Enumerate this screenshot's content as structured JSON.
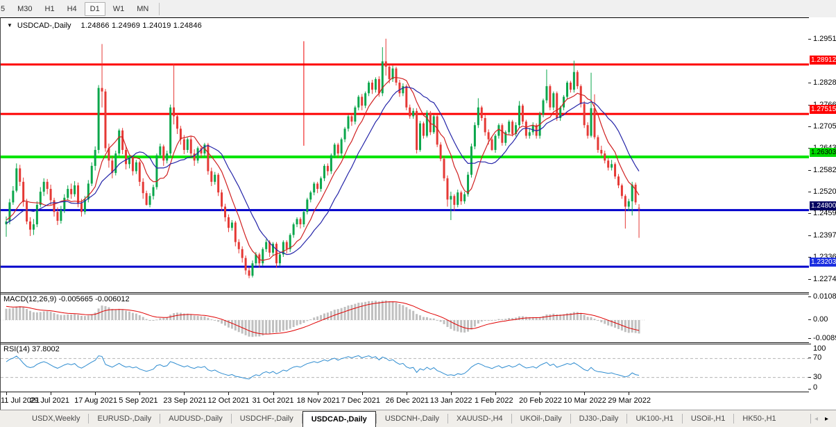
{
  "toolbar": {
    "timeframes": [
      {
        "label": "5",
        "active": false,
        "partial": true
      },
      {
        "label": "M30",
        "active": false
      },
      {
        "label": "H1",
        "active": false
      },
      {
        "label": "H4",
        "active": false
      },
      {
        "label": "D1",
        "active": true
      },
      {
        "label": "W1",
        "active": false
      },
      {
        "label": "MN",
        "active": false
      }
    ]
  },
  "chart_header": {
    "symbol_label": "USDCAD-,Daily",
    "ohlc_text": "1.24866 1.24969 1.24019 1.24846",
    "dropdown_icon": "triangle-down"
  },
  "price_axis": {
    "ticks": [
      {
        "label": "1.29510",
        "value": 1.2951
      },
      {
        "label": "1.28280",
        "value": 1.2828
      },
      {
        "label": "1.27665",
        "value": 1.27665
      },
      {
        "label": "1.27050",
        "value": 1.2705
      },
      {
        "label": "1.26435",
        "value": 1.26435
      },
      {
        "label": "1.25820",
        "value": 1.2582
      },
      {
        "label": "1.25205",
        "value": 1.25205
      },
      {
        "label": "1.24590",
        "value": 1.2459
      },
      {
        "label": "1.23975",
        "value": 1.23975
      },
      {
        "label": "1.23360",
        "value": 1.2336
      },
      {
        "label": "1.22745",
        "value": 1.22745
      }
    ]
  },
  "hlines": [
    {
      "price": 1.28912,
      "label": "1.28912",
      "line_color": "#fe0000",
      "line_width": 3,
      "label_bg": "#fe0000",
      "label_fg": "#ffffff"
    },
    {
      "price": 1.27515,
      "label": "1.27515",
      "line_color": "#fe0000",
      "line_width": 3,
      "label_bg": "#fe0000",
      "label_fg": "#ffffff"
    },
    {
      "price": 1.26303,
      "label": "1.26303",
      "line_color": "#00e400",
      "line_width": 4,
      "label_bg": "#00d800",
      "label_fg": "#000000"
    },
    {
      "price": 1.248,
      "label": "1.24800",
      "line_color": "#0000cc",
      "line_width": 3,
      "label_bg": "#000060",
      "label_fg": "#ffffff"
    },
    {
      "price": 1.23203,
      "label": "1.23203",
      "line_color": "#0000cc",
      "line_width": 3,
      "label_bg": "#1b2fe0",
      "label_fg": "#ffffff"
    }
  ],
  "indicators": {
    "macd": {
      "label": "MACD(12,26,9)",
      "values_text": "-0.005665 -0.006012",
      "axis_ticks": [
        {
          "label": "0.010869",
          "value": 0.010869
        },
        {
          "label": "0.00",
          "value": 0.0
        },
        {
          "label": "-0.008974",
          "value": -0.008974
        }
      ],
      "hist_color": "#c0c0c0",
      "signal_color": "#e00000"
    },
    "rsi": {
      "label": "RSI(14)",
      "value_text": "37.8002",
      "axis_ticks": [
        {
          "label": "100",
          "value": 100
        },
        {
          "label": "70",
          "value": 70
        },
        {
          "label": "30",
          "value": 30
        },
        {
          "label": "0",
          "value": 0
        }
      ],
      "levels": [
        70,
        30
      ],
      "line_color": "#2e8cd0",
      "level_color": "#b4b4b4"
    }
  },
  "time_axis": {
    "tick_interval_bars": 13,
    "dates": [
      "11 Jul 2021",
      "29 Jul 2021",
      "17 Aug 2021",
      "5 Sep 2021",
      "23 Sep 2021",
      "12 Oct 2021",
      "31 Oct 2021",
      "18 Nov 2021",
      "7 Dec 2021",
      "26 Dec 2021",
      "13 Jan 2022",
      "1 Feb 2022",
      "20 Feb 2022",
      "10 Mar 2022",
      "29 Mar 2022"
    ]
  },
  "tabs": {
    "items": [
      "USDX,Weekly",
      "EURUSD-,Daily",
      "AUDUSD-,Daily",
      "USDCHF-,Daily",
      "USDCAD-,Daily",
      "USDCNH-,Daily",
      "XAUUSD-,H4",
      "UKOil-,Daily",
      "DJ30-,Daily",
      "UK100-,H1",
      "USOil-,H1",
      "HK50-,H1"
    ],
    "active": "USDCAD-,Daily",
    "scroll_left_enabled": false,
    "scroll_right_enabled": true
  },
  "chart_data": {
    "type": "candlestick",
    "symbol": "USDCAD",
    "timeframe": "Daily",
    "title": "USDCAD-,Daily",
    "ylim": [
      1.2238,
      1.2973
    ],
    "grid": false,
    "up_color": "#0aa64b",
    "down_color": "#e53935",
    "ma_fast_color": "#d02020",
    "ma_slow_color": "#2424a8",
    "ma_fast_period": 8,
    "ma_slow_period": 16,
    "annotations": [
      {
        "type": "vline-segment",
        "bar": 87,
        "price_from": 1.2957,
        "price_to": 1.2662,
        "color": "#ee0000"
      }
    ],
    "indicator_warmup_closes": [
      1.205,
      1.208,
      1.2065,
      1.211,
      1.215,
      1.213,
      1.218,
      1.221,
      1.219,
      1.224,
      1.228,
      1.226,
      1.231,
      1.234,
      1.232,
      1.236,
      1.239,
      1.237,
      1.24,
      1.243,
      1.241,
      1.244,
      1.246,
      1.243,
      1.239,
      1.242,
      1.245,
      1.247,
      1.244,
      1.246,
      1.248,
      1.245,
      1.243,
      1.246,
      1.2445
    ],
    "candles": [
      [
        1.244,
        1.2462,
        1.2405,
        1.2448
      ],
      [
        1.2448,
        1.2512,
        1.244,
        1.2502
      ],
      [
        1.2502,
        1.2548,
        1.2495,
        1.2535
      ],
      [
        1.2535,
        1.2612,
        1.253,
        1.2598
      ],
      [
        1.2598,
        1.2608,
        1.2548,
        1.256
      ],
      [
        1.256,
        1.2572,
        1.249,
        1.2503
      ],
      [
        1.2503,
        1.2512,
        1.244,
        1.2448
      ],
      [
        1.2448,
        1.246,
        1.2407,
        1.2425
      ],
      [
        1.2425,
        1.2455,
        1.241,
        1.244
      ],
      [
        1.244,
        1.2505,
        1.2432,
        1.2495
      ],
      [
        1.2495,
        1.2545,
        1.2488,
        1.2532
      ],
      [
        1.2532,
        1.257,
        1.252,
        1.256
      ],
      [
        1.256,
        1.2568,
        1.2525,
        1.254
      ],
      [
        1.254,
        1.2552,
        1.2495,
        1.2508
      ],
      [
        1.2508,
        1.2515,
        1.2462,
        1.2475
      ],
      [
        1.2475,
        1.2488,
        1.2438,
        1.245
      ],
      [
        1.245,
        1.2492,
        1.2442,
        1.248
      ],
      [
        1.248,
        1.2525,
        1.2472,
        1.2515
      ],
      [
        1.2515,
        1.255,
        1.2508,
        1.254
      ],
      [
        1.254,
        1.2555,
        1.2512,
        1.2525
      ],
      [
        1.2525,
        1.2562,
        1.2518,
        1.255
      ],
      [
        1.255,
        1.2558,
        1.2488,
        1.25
      ],
      [
        1.25,
        1.2512,
        1.2462,
        1.2475
      ],
      [
        1.2475,
        1.252,
        1.2468,
        1.251
      ],
      [
        1.251,
        1.2565,
        1.2502,
        1.2555
      ],
      [
        1.2555,
        1.2615,
        1.2548,
        1.2605
      ],
      [
        1.2605,
        1.266,
        1.2592,
        1.265
      ],
      [
        1.265,
        1.2833,
        1.264,
        1.2825
      ],
      [
        1.2825,
        1.2949,
        1.277,
        1.2815
      ],
      [
        1.2815,
        1.2822,
        1.2645,
        1.2655
      ],
      [
        1.2655,
        1.2668,
        1.26,
        1.262
      ],
      [
        1.262,
        1.2632,
        1.257,
        1.2585
      ],
      [
        1.2585,
        1.2648,
        1.2578,
        1.264
      ],
      [
        1.264,
        1.271,
        1.2632,
        1.2705
      ],
      [
        1.2705,
        1.2712,
        1.2638,
        1.265
      ],
      [
        1.265,
        1.2662,
        1.2595,
        1.261
      ],
      [
        1.261,
        1.2635,
        1.2598,
        1.2628
      ],
      [
        1.2628,
        1.2635,
        1.2578,
        1.259
      ],
      [
        1.259,
        1.2622,
        1.2582,
        1.2615
      ],
      [
        1.2615,
        1.262,
        1.2548,
        1.256
      ],
      [
        1.256,
        1.257,
        1.2512,
        1.2528
      ],
      [
        1.2528,
        1.2535,
        1.2493,
        1.2495
      ],
      [
        1.2495,
        1.2528,
        1.2488,
        1.252
      ],
      [
        1.252,
        1.2552,
        1.251,
        1.2545
      ],
      [
        1.2545,
        1.264,
        1.2538,
        1.2635
      ],
      [
        1.2635,
        1.2668,
        1.2628,
        1.266
      ],
      [
        1.266,
        1.2665,
        1.2605,
        1.262
      ],
      [
        1.262,
        1.2648,
        1.2612,
        1.264
      ],
      [
        1.264,
        1.2778,
        1.2632,
        1.277
      ],
      [
        1.277,
        1.2893,
        1.2722,
        1.2745
      ],
      [
        1.2745,
        1.2752,
        1.2695,
        1.271
      ],
      [
        1.271,
        1.2718,
        1.2665,
        1.268
      ],
      [
        1.268,
        1.2692,
        1.2638,
        1.265
      ],
      [
        1.265,
        1.2685,
        1.2642,
        1.268
      ],
      [
        1.268,
        1.2688,
        1.2628,
        1.264
      ],
      [
        1.264,
        1.2652,
        1.2605,
        1.262
      ],
      [
        1.262,
        1.266,
        1.2612,
        1.2655
      ],
      [
        1.2655,
        1.2662,
        1.2628,
        1.264
      ],
      [
        1.264,
        1.267,
        1.2632,
        1.2665
      ],
      [
        1.2665,
        1.267,
        1.258,
        1.259
      ],
      [
        1.259,
        1.26,
        1.2548,
        1.256
      ],
      [
        1.256,
        1.2588,
        1.2552,
        1.258
      ],
      [
        1.258,
        1.2585,
        1.252,
        1.253
      ],
      [
        1.253,
        1.2538,
        1.2478,
        1.249
      ],
      [
        1.249,
        1.2498,
        1.2448,
        1.246
      ],
      [
        1.246,
        1.2468,
        1.2418,
        1.243
      ],
      [
        1.243,
        1.2452,
        1.2422,
        1.2445
      ],
      [
        1.2445,
        1.245,
        1.2378,
        1.239
      ],
      [
        1.239,
        1.2398,
        1.2358,
        1.237
      ],
      [
        1.237,
        1.2378,
        1.2332,
        1.2345
      ],
      [
        1.2345,
        1.2352,
        1.2298,
        1.231
      ],
      [
        1.231,
        1.2318,
        1.2288,
        1.2295
      ],
      [
        1.2295,
        1.2338,
        1.229,
        1.233
      ],
      [
        1.233,
        1.2362,
        1.2322,
        1.2355
      ],
      [
        1.2355,
        1.236,
        1.2318,
        1.233
      ],
      [
        1.233,
        1.2375,
        1.2322,
        1.237
      ],
      [
        1.237,
        1.2398,
        1.2362,
        1.239
      ],
      [
        1.239,
        1.2395,
        1.2348,
        1.236
      ],
      [
        1.236,
        1.239,
        1.2352,
        1.2385
      ],
      [
        1.2385,
        1.239,
        1.2318,
        1.233
      ],
      [
        1.233,
        1.236,
        1.2322,
        1.2355
      ],
      [
        1.2355,
        1.2395,
        1.2348,
        1.239
      ],
      [
        1.239,
        1.2395,
        1.2358,
        1.237
      ],
      [
        1.237,
        1.2415,
        1.2362,
        1.241
      ],
      [
        1.241,
        1.2445,
        1.2402,
        1.244
      ],
      [
        1.244,
        1.246,
        1.2432,
        1.2455
      ],
      [
        1.2455,
        1.246,
        1.2428,
        1.244
      ],
      [
        1.244,
        1.248,
        1.2432,
        1.2475
      ],
      [
        1.2475,
        1.2515,
        1.2468,
        1.251
      ],
      [
        1.251,
        1.2535,
        1.2502,
        1.253
      ],
      [
        1.253,
        1.256,
        1.2522,
        1.2555
      ],
      [
        1.2555,
        1.256,
        1.2528,
        1.254
      ],
      [
        1.254,
        1.2575,
        1.2532,
        1.257
      ],
      [
        1.257,
        1.261,
        1.2562,
        1.2605
      ],
      [
        1.2605,
        1.2612,
        1.2578,
        1.259
      ],
      [
        1.259,
        1.264,
        1.2582,
        1.2635
      ],
      [
        1.2635,
        1.267,
        1.2628,
        1.2665
      ],
      [
        1.2665,
        1.267,
        1.2628,
        1.264
      ],
      [
        1.264,
        1.2685,
        1.2632,
        1.268
      ],
      [
        1.268,
        1.2715,
        1.2672,
        1.271
      ],
      [
        1.271,
        1.275,
        1.2702,
        1.2745
      ],
      [
        1.2745,
        1.2752,
        1.2718,
        1.273
      ],
      [
        1.273,
        1.2775,
        1.2722,
        1.277
      ],
      [
        1.277,
        1.2805,
        1.2762,
        1.28
      ],
      [
        1.28,
        1.2808,
        1.2762,
        1.2775
      ],
      [
        1.2775,
        1.2815,
        1.2768,
        1.281
      ],
      [
        1.281,
        1.2845,
        1.2802,
        1.284
      ],
      [
        1.284,
        1.2848,
        1.2808,
        1.282
      ],
      [
        1.282,
        1.2855,
        1.2812,
        1.285
      ],
      [
        1.285,
        1.2858,
        1.28,
        1.281
      ],
      [
        1.281,
        1.294,
        1.2802,
        1.29
      ],
      [
        1.29,
        1.2964,
        1.286,
        1.2885
      ],
      [
        1.2885,
        1.2892,
        1.2838,
        1.285
      ],
      [
        1.285,
        1.2888,
        1.2842,
        1.288
      ],
      [
        1.288,
        1.2885,
        1.2832,
        1.284
      ],
      [
        1.284,
        1.2848,
        1.28,
        1.281
      ],
      [
        1.281,
        1.2838,
        1.2802,
        1.283
      ],
      [
        1.283,
        1.2835,
        1.2762,
        1.277
      ],
      [
        1.277,
        1.2778,
        1.2738,
        1.2745
      ],
      [
        1.2745,
        1.2768,
        1.2738,
        1.276
      ],
      [
        1.276,
        1.2768,
        1.264,
        1.265
      ],
      [
        1.265,
        1.2732,
        1.2645,
        1.2725
      ],
      [
        1.2725,
        1.273,
        1.2682,
        1.269
      ],
      [
        1.269,
        1.2762,
        1.2685,
        1.2755
      ],
      [
        1.2755,
        1.276,
        1.2692,
        1.27
      ],
      [
        1.27,
        1.275,
        1.2695,
        1.2745
      ],
      [
        1.2745,
        1.275,
        1.2658,
        1.2665
      ],
      [
        1.2665,
        1.2672,
        1.2618,
        1.2625
      ],
      [
        1.2625,
        1.2632,
        1.2562,
        1.257
      ],
      [
        1.257,
        1.2578,
        1.249,
        1.251
      ],
      [
        1.251,
        1.2532,
        1.2452,
        1.252
      ],
      [
        1.252,
        1.2525,
        1.2478,
        1.2495
      ],
      [
        1.2495,
        1.2538,
        1.2488,
        1.253
      ],
      [
        1.253,
        1.2535,
        1.2495,
        1.2505
      ],
      [
        1.2505,
        1.2532,
        1.2498,
        1.2525
      ],
      [
        1.2525,
        1.2588,
        1.2518,
        1.258
      ],
      [
        1.258,
        1.2668,
        1.2572,
        1.266
      ],
      [
        1.266,
        1.2728,
        1.2652,
        1.272
      ],
      [
        1.272,
        1.2796,
        1.2712,
        1.277
      ],
      [
        1.277,
        1.2775,
        1.2732,
        1.274
      ],
      [
        1.274,
        1.2748,
        1.269,
        1.27
      ],
      [
        1.27,
        1.2708,
        1.2665,
        1.268
      ],
      [
        1.268,
        1.2688,
        1.2647,
        1.265
      ],
      [
        1.265,
        1.2695,
        1.2642,
        1.269
      ],
      [
        1.269,
        1.2725,
        1.2682,
        1.272
      ],
      [
        1.272,
        1.2725,
        1.2662,
        1.267
      ],
      [
        1.267,
        1.2705,
        1.2662,
        1.27
      ],
      [
        1.27,
        1.2735,
        1.2692,
        1.273
      ],
      [
        1.273,
        1.2735,
        1.2688,
        1.2695
      ],
      [
        1.2695,
        1.2728,
        1.2688,
        1.272
      ],
      [
        1.272,
        1.2788,
        1.2712,
        1.2775
      ],
      [
        1.2775,
        1.278,
        1.2722,
        1.273
      ],
      [
        1.273,
        1.2735,
        1.2682,
        1.269
      ],
      [
        1.269,
        1.2712,
        1.2682,
        1.27
      ],
      [
        1.27,
        1.2728,
        1.2692,
        1.272
      ],
      [
        1.272,
        1.2725,
        1.2682,
        1.269
      ],
      [
        1.269,
        1.2758,
        1.2682,
        1.275
      ],
      [
        1.275,
        1.2795,
        1.2742,
        1.279
      ],
      [
        1.279,
        1.2877,
        1.2782,
        1.283
      ],
      [
        1.283,
        1.2835,
        1.2762,
        1.277
      ],
      [
        1.277,
        1.2815,
        1.2762,
        1.281
      ],
      [
        1.281,
        1.2815,
        1.2732,
        1.274
      ],
      [
        1.274,
        1.2775,
        1.2732,
        1.277
      ],
      [
        1.277,
        1.2805,
        1.2762,
        1.28
      ],
      [
        1.28,
        1.2845,
        1.2792,
        1.284
      ],
      [
        1.284,
        1.2845,
        1.2812,
        1.282
      ],
      [
        1.282,
        1.2902,
        1.2812,
        1.287
      ],
      [
        1.287,
        1.2875,
        1.2822,
        1.283
      ],
      [
        1.283,
        1.2835,
        1.277,
        1.278
      ],
      [
        1.278,
        1.2788,
        1.2712,
        1.272
      ],
      [
        1.272,
        1.2728,
        1.2682,
        1.269
      ],
      [
        1.269,
        1.2868,
        1.2685,
        1.2768
      ],
      [
        1.2768,
        1.2807,
        1.268,
        1.2686
      ],
      [
        1.2686,
        1.2692,
        1.2642,
        1.265
      ],
      [
        1.265,
        1.2662,
        1.2632,
        1.264
      ],
      [
        1.264,
        1.2648,
        1.2612,
        1.262
      ],
      [
        1.262,
        1.2628,
        1.2592,
        1.26
      ],
      [
        1.26,
        1.2622,
        1.2592,
        1.261
      ],
      [
        1.261,
        1.2615,
        1.2568,
        1.2575
      ],
      [
        1.2575,
        1.2582,
        1.2542,
        1.255
      ],
      [
        1.255,
        1.2555,
        1.2512,
        1.252
      ],
      [
        1.252,
        1.2525,
        1.2428,
        1.249
      ],
      [
        1.249,
        1.2512,
        1.2478,
        1.2505
      ],
      [
        1.2505,
        1.256,
        1.2465,
        1.2552
      ],
      [
        1.2552,
        1.2558,
        1.2495,
        1.2502
      ],
      [
        1.24866,
        1.24969,
        1.24019,
        1.24846
      ]
    ]
  }
}
